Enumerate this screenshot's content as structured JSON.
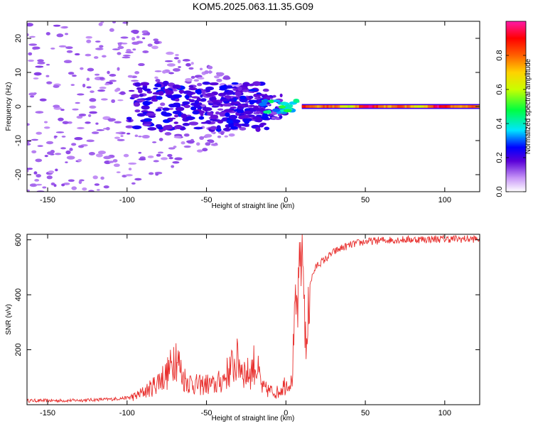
{
  "figure_title": "KOM5.2025.063.11.35.G09",
  "colors": {
    "snr_line": "#e8302e",
    "axis": "#000000",
    "background": "#ffffff"
  },
  "chart_data": [
    {
      "type": "heatmap",
      "xlabel": "Height of straight line (km)",
      "ylabel": "Frequency (Hz)",
      "xlim": [
        -163,
        122
      ],
      "ylim": [
        -25,
        25
      ],
      "xticks": [
        -150,
        -100,
        -50,
        0,
        50,
        100
      ],
      "yticks": [
        -20,
        -10,
        0,
        10,
        20
      ],
      "xtick_labels": [
        "-150",
        "-100",
        "-50",
        "0",
        "50",
        "100"
      ],
      "ytick_labels": [
        "-20",
        "-10",
        "0",
        "10",
        "20"
      ],
      "colorbar": {
        "label": "Normalized spectral amplitude",
        "range": [
          0,
          1
        ],
        "ticks": [
          0.0,
          0.2,
          0.4,
          0.6,
          0.8
        ],
        "tick_labels": [
          "0.0",
          "0.2",
          "0.4",
          "0.6",
          "0.8"
        ],
        "colormap": "rainbow: white-violet (0) → blue → cyan → green → yellow → red → magenta (1)"
      },
      "features": [
        {
          "description": "continuous strong line at 0 Hz",
          "x_range": [
            10,
            122
          ],
          "frequency_hz": 0,
          "amplitude": 0.85
        },
        {
          "description": "weaker cyan/green blobs near 0 Hz",
          "x_range": [
            -15,
            10
          ],
          "frequency_hz": 0,
          "amplitude": 0.45
        },
        {
          "description": "scattered violet/purple speckle spreading in frequency",
          "x_range": [
            -163,
            -10
          ],
          "frequency_spread_hz": [
            -25,
            25
          ],
          "amplitude": 0.1
        }
      ]
    },
    {
      "type": "line",
      "xlabel": "Height of straight line (km)",
      "ylabel": "SNR (v/v)",
      "xlim": [
        -163,
        122
      ],
      "ylim": [
        0,
        620
      ],
      "xticks": [
        -150,
        -100,
        -50,
        0,
        50,
        100
      ],
      "yticks": [
        200,
        400,
        600
      ],
      "xtick_labels": [
        "-150",
        "-100",
        "-50",
        "0",
        "50",
        "100"
      ],
      "ytick_labels": [
        "200",
        "400",
        "600"
      ],
      "series": [
        {
          "x": [
            -163,
            -150,
            -140,
            -130,
            -120,
            -110,
            -100,
            -95,
            -90,
            -85,
            -80,
            -75,
            -72,
            -70,
            -68,
            -65,
            -60,
            -55,
            -50,
            -45,
            -40,
            -35,
            -32,
            -30,
            -28,
            -25,
            -22,
            -20,
            -18,
            -15,
            -10,
            -5,
            0,
            2,
            4,
            5,
            6,
            8,
            9,
            10,
            11,
            12,
            13,
            15,
            18,
            20,
            25,
            30,
            35,
            40,
            45,
            50,
            60,
            70,
            80,
            90,
            100,
            110,
            122
          ],
          "y": [
            15,
            15,
            15,
            16,
            18,
            20,
            25,
            30,
            45,
            60,
            90,
            110,
            140,
            200,
            160,
            100,
            80,
            70,
            75,
            70,
            90,
            130,
            150,
            160,
            140,
            110,
            120,
            150,
            130,
            60,
            50,
            45,
            80,
            70,
            90,
            250,
            330,
            380,
            520,
            600,
            500,
            300,
            180,
            440,
            490,
            510,
            530,
            555,
            570,
            580,
            588,
            593,
            598,
            600,
            601,
            602,
            603,
            603,
            603
          ]
        }
      ]
    }
  ]
}
